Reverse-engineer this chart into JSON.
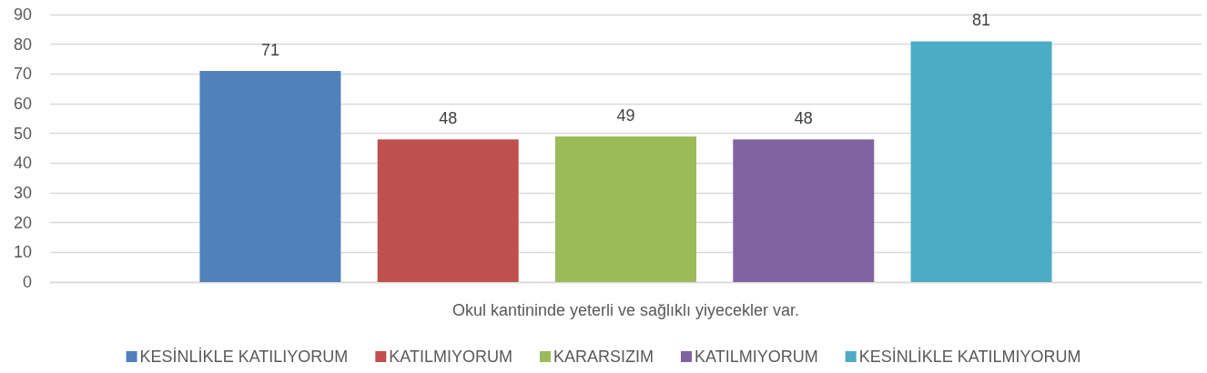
{
  "chart_data": {
    "type": "bar",
    "categories": [
      "Okul kantininde yeterli ve sağlıklı yiyecekler var."
    ],
    "series": [
      {
        "name": "KESİNLİKLE KATILIYORUM",
        "color": "#4f81bd",
        "values": [
          71
        ]
      },
      {
        "name": "KATILMIYORUM",
        "color": "#c0504d",
        "values": [
          48
        ]
      },
      {
        "name": "KARARSIZIM",
        "color": "#9bbb59",
        "values": [
          49
        ]
      },
      {
        "name": "KATILMIYORUM",
        "color": "#8064a2",
        "values": [
          48
        ]
      },
      {
        "name": "KESİNLİKLE KATILMIYORUM",
        "color": "#4bacc6",
        "values": [
          81
        ]
      }
    ],
    "ylim": [
      0,
      90
    ],
    "yticks": [
      0,
      10,
      20,
      30,
      40,
      50,
      60,
      70,
      80,
      90
    ],
    "grid": "y",
    "legend": "bottom",
    "data_labels": true
  }
}
